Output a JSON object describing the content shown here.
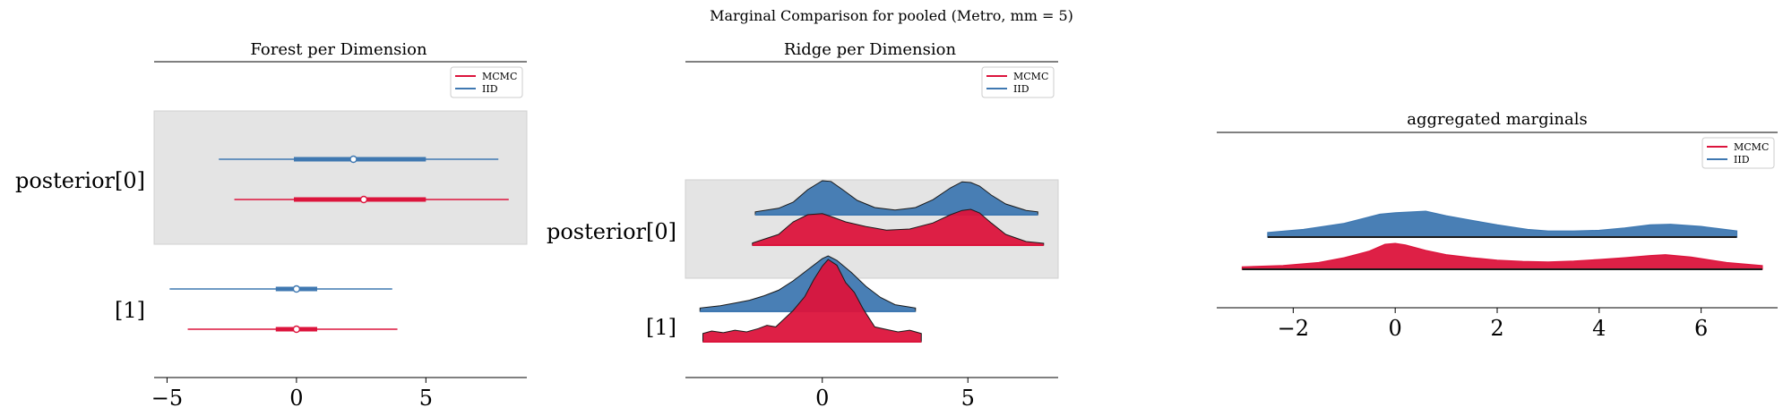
{
  "suptitle": "Marginal Comparison for pooled (Metro, mm = 5)",
  "colors": {
    "mcmc": "#dc143c",
    "iid": "#3f78b1",
    "shade": "#e4e4e4"
  },
  "chart_data": [
    {
      "type": "forest",
      "title": "Forest per Dimension",
      "xlim": [
        -5.5,
        8.9
      ],
      "xticks": [
        -5,
        0,
        5
      ],
      "xtick_labels": [
        "−5",
        "0",
        "5"
      ],
      "legend": [
        "MCMC",
        "IID"
      ],
      "legend_position": "upper-right",
      "rows": [
        {
          "label": "posterior[0]",
          "shaded": true,
          "series": [
            {
              "name": "IID",
              "hdi_low": -3.0,
              "hdi_high": 7.8,
              "iqr_low": -0.1,
              "iqr_high": 5.0,
              "point": 2.2
            },
            {
              "name": "MCMC",
              "hdi_low": -2.4,
              "hdi_high": 8.2,
              "iqr_low": -0.1,
              "iqr_high": 5.0,
              "point": 2.6
            }
          ]
        },
        {
          "label": "[1]",
          "shaded": false,
          "series": [
            {
              "name": "IID",
              "hdi_low": -4.9,
              "hdi_high": 3.7,
              "iqr_low": -0.8,
              "iqr_high": 0.8,
              "point": 0.0
            },
            {
              "name": "MCMC",
              "hdi_low": -4.2,
              "hdi_high": 3.9,
              "iqr_low": -0.8,
              "iqr_high": 0.8,
              "point": 0.0
            }
          ]
        }
      ]
    },
    {
      "type": "ridge",
      "title": "Ridge per Dimension",
      "xlim": [
        -4.7,
        8.1
      ],
      "xticks": [
        0,
        5
      ],
      "xtick_labels": [
        "0",
        "5"
      ],
      "legend": [
        "MCMC",
        "IID"
      ],
      "legend_position": "upper-right",
      "rows": [
        {
          "label": "posterior[0]",
          "shaded": true,
          "series": [
            {
              "name": "IID",
              "x": [
                -2.3,
                -1.5,
                -1.0,
                -0.5,
                0.0,
                0.3,
                0.7,
                1.2,
                1.8,
                2.5,
                3.2,
                3.8,
                4.4,
                4.8,
                5.1,
                5.4,
                5.8,
                6.3,
                7.0,
                7.4
              ],
              "y": [
                0.08,
                0.18,
                0.35,
                0.7,
                0.95,
                0.93,
                0.7,
                0.4,
                0.2,
                0.13,
                0.2,
                0.42,
                0.75,
                0.92,
                0.9,
                0.8,
                0.55,
                0.3,
                0.12,
                0.08
              ]
            },
            {
              "name": "MCMC",
              "x": [
                -2.4,
                -1.5,
                -1.0,
                -0.5,
                0.0,
                0.3,
                0.8,
                1.5,
                2.2,
                3.0,
                3.8,
                4.4,
                4.8,
                5.1,
                5.4,
                5.8,
                6.3,
                7.0,
                7.6
              ],
              "y": [
                0.06,
                0.3,
                0.65,
                0.85,
                0.88,
                0.8,
                0.65,
                0.52,
                0.42,
                0.45,
                0.62,
                0.85,
                0.97,
                1.0,
                0.9,
                0.62,
                0.3,
                0.1,
                0.05
              ]
            }
          ]
        },
        {
          "label": "[1]",
          "shaded": false,
          "series": [
            {
              "name": "IID",
              "x": [
                -4.2,
                -3.5,
                -3.0,
                -2.5,
                -2.0,
                -1.5,
                -1.0,
                -0.5,
                0.0,
                0.2,
                0.5,
                1.0,
                1.5,
                2.0,
                2.5,
                3.2
              ],
              "y": [
                0.06,
                0.1,
                0.15,
                0.2,
                0.28,
                0.38,
                0.55,
                0.75,
                0.95,
                1.0,
                0.92,
                0.7,
                0.45,
                0.25,
                0.12,
                0.06
              ]
            },
            {
              "name": "MCMC",
              "x": [
                -4.1,
                -3.8,
                -3.4,
                -3.0,
                -2.6,
                -2.2,
                -1.9,
                -1.6,
                -1.3,
                -1.0,
                -0.6,
                -0.3,
                0.0,
                0.2,
                0.5,
                0.8,
                1.1,
                1.4,
                1.8,
                2.2,
                2.6,
                3.0,
                3.4
              ],
              "y": [
                0.1,
                0.13,
                0.11,
                0.14,
                0.12,
                0.16,
                0.2,
                0.18,
                0.28,
                0.38,
                0.55,
                0.75,
                0.92,
                1.0,
                0.93,
                0.72,
                0.6,
                0.4,
                0.18,
                0.15,
                0.12,
                0.14,
                0.1
              ]
            }
          ]
        }
      ]
    },
    {
      "type": "area",
      "title": "aggregated marginals",
      "xlim": [
        -3.5,
        7.5
      ],
      "xticks": [
        -2,
        0,
        2,
        4,
        6
      ],
      "xtick_labels": [
        "−2",
        "0",
        "2",
        "4",
        "6"
      ],
      "legend": [
        "MCMC",
        "IID"
      ],
      "legend_position": "upper-right",
      "series": [
        {
          "name": "IID",
          "x": [
            -2.5,
            -1.8,
            -1.0,
            -0.3,
            0.0,
            0.6,
            1.0,
            1.5,
            2.0,
            2.6,
            3.0,
            3.5,
            4.0,
            4.5,
            5.0,
            5.4,
            6.0,
            6.7
          ],
          "y": [
            0.15,
            0.25,
            0.45,
            0.75,
            0.8,
            0.85,
            0.7,
            0.55,
            0.4,
            0.25,
            0.2,
            0.2,
            0.22,
            0.3,
            0.4,
            0.42,
            0.35,
            0.2
          ]
        },
        {
          "name": "MCMC",
          "x": [
            -3.0,
            -2.2,
            -1.5,
            -1.0,
            -0.5,
            -0.2,
            0.0,
            0.2,
            0.6,
            1.0,
            1.5,
            2.0,
            2.5,
            3.0,
            3.5,
            4.0,
            4.5,
            5.0,
            5.3,
            5.8,
            6.5,
            7.2
          ],
          "y": [
            0.08,
            0.12,
            0.22,
            0.38,
            0.6,
            0.82,
            0.85,
            0.8,
            0.62,
            0.48,
            0.38,
            0.3,
            0.26,
            0.24,
            0.27,
            0.32,
            0.38,
            0.45,
            0.48,
            0.4,
            0.22,
            0.12
          ]
        }
      ]
    }
  ]
}
